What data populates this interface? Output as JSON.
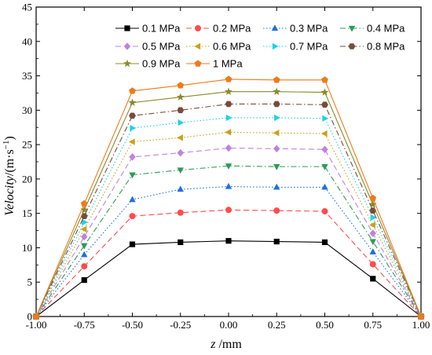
{
  "chart_data": {
    "type": "line",
    "xlabel_italic": "z",
    "xlabel_unit": " /mm",
    "ylabel_italic": "Velocity",
    "ylabel_unit": "/(m·s",
    "ylabel_sup": "−1",
    "ylabel_close": ")",
    "xlim": [
      -1.0,
      1.0
    ],
    "ylim": [
      0,
      45
    ],
    "x_ticks": [
      -1.0,
      -0.75,
      -0.5,
      -0.25,
      0.0,
      0.25,
      0.5,
      0.75,
      1.0
    ],
    "x_tick_labels": [
      "-1.00",
      "-0.75",
      "-0.50",
      "-0.25",
      "0.00",
      "0.25",
      "0.50",
      "0.75",
      "1.00"
    ],
    "y_ticks": [
      0,
      5,
      10,
      15,
      20,
      25,
      30,
      35,
      40,
      45
    ],
    "y_tick_labels": [
      "0",
      "5",
      "10",
      "15",
      "20",
      "25",
      "30",
      "35",
      "40",
      "45"
    ],
    "grid": false,
    "legend_position": "top",
    "x": [
      -1.0,
      -0.75,
      -0.5,
      -0.25,
      0.0,
      0.25,
      0.5,
      0.75,
      1.0
    ],
    "series": [
      {
        "name": "0.1 MPa",
        "color": "#000000",
        "marker": "square",
        "dash": "solid",
        "values": [
          0,
          5.3,
          10.5,
          10.8,
          11.0,
          10.9,
          10.8,
          5.5,
          0
        ]
      },
      {
        "name": "0.2 MPa",
        "color": "#ff4b4b",
        "marker": "circle",
        "dash": "dashed",
        "values": [
          0,
          7.3,
          14.6,
          15.1,
          15.5,
          15.4,
          15.3,
          7.6,
          0
        ]
      },
      {
        "name": "0.3 MPa",
        "color": "#1f6fe0",
        "marker": "triangle-up",
        "dash": "dotted",
        "values": [
          0,
          9.0,
          17.0,
          18.5,
          18.9,
          18.8,
          18.8,
          9.4,
          0
        ]
      },
      {
        "name": "0.4 MPa",
        "color": "#2e9b57",
        "marker": "triangle-down",
        "dash": "dashdot",
        "values": [
          0,
          10.3,
          20.6,
          21.3,
          21.9,
          21.8,
          21.8,
          10.9,
          0
        ]
      },
      {
        "name": "0.5 MPa",
        "color": "#c080e0",
        "marker": "diamond",
        "dash": "dashed",
        "values": [
          0,
          11.6,
          23.2,
          23.8,
          24.5,
          24.4,
          24.3,
          12.1,
          0
        ]
      },
      {
        "name": "0.6 MPa",
        "color": "#c9a216",
        "marker": "triangle-left",
        "dash": "dotted",
        "values": [
          0,
          12.7,
          25.4,
          26.0,
          26.8,
          26.7,
          26.6,
          13.3,
          0
        ]
      },
      {
        "name": "0.7 MPa",
        "color": "#1ed2e6",
        "marker": "triangle-right",
        "dash": "dotted",
        "values": [
          0,
          13.7,
          27.4,
          28.2,
          28.9,
          28.9,
          28.8,
          14.4,
          0
        ]
      },
      {
        "name": "0.8 MPa",
        "color": "#7a4a3a",
        "marker": "hexagon",
        "dash": "dashdot",
        "values": [
          0,
          14.6,
          29.2,
          30.0,
          30.9,
          30.9,
          30.8,
          15.4,
          0
        ]
      },
      {
        "name": "0.9 MPa",
        "color": "#888a2a",
        "marker": "star",
        "dash": "solid",
        "values": [
          0,
          15.5,
          31.1,
          31.9,
          32.7,
          32.7,
          32.6,
          16.3,
          0
        ]
      },
      {
        "name": "1 MPa",
        "color": "#f07a1a",
        "marker": "pentagon",
        "dash": "solid",
        "values": [
          0,
          16.4,
          32.8,
          33.6,
          34.5,
          34.4,
          34.4,
          17.2,
          0
        ]
      }
    ]
  }
}
